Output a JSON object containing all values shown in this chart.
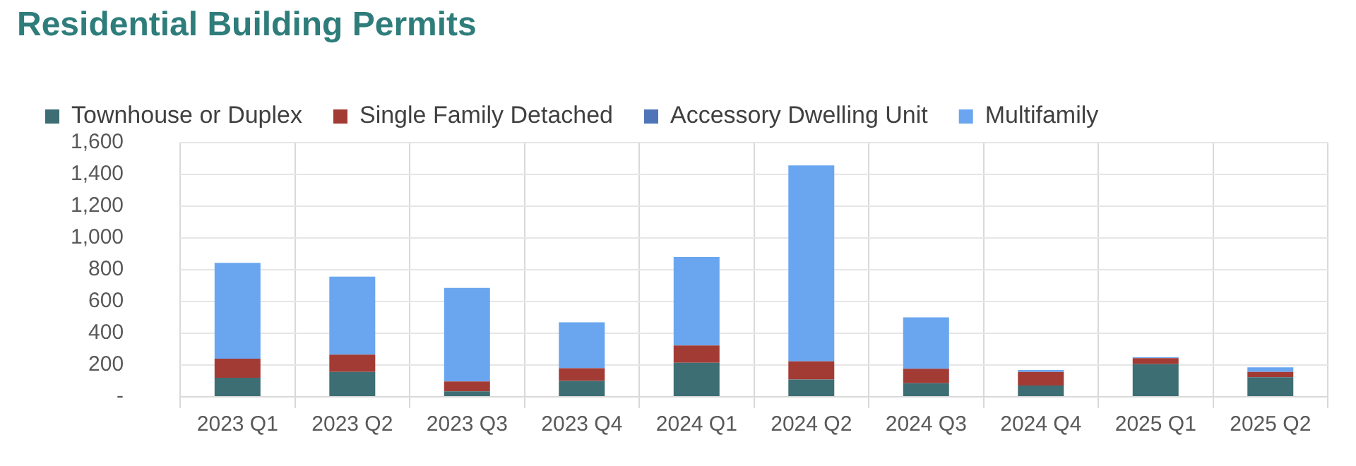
{
  "chart_data": {
    "type": "bar",
    "title": "Residential Building Permits",
    "stacked": true,
    "legend": "top",
    "grid": "y",
    "categories": [
      "2023 Q1",
      "2023 Q2",
      "2023 Q3",
      "2023 Q4",
      "2024 Q1",
      "2024 Q2",
      "2024 Q3",
      "2024 Q4",
      "2025 Q1",
      "2025 Q2"
    ],
    "series": [
      {
        "name": "Townhouse or Duplex",
        "color": "#3d6e74",
        "values": [
          120,
          157,
          34,
          100,
          214,
          109,
          86,
          71,
          206,
          123
        ]
      },
      {
        "name": "Single Family Detached",
        "color": "#a33b35",
        "values": [
          120,
          109,
          63,
          80,
          109,
          114,
          91,
          86,
          37,
          34
        ]
      },
      {
        "name": "Accessory Dwelling Unit",
        "color": "#4f74b8",
        "values": [
          0,
          0,
          0,
          0,
          0,
          0,
          0,
          0,
          0,
          0
        ]
      },
      {
        "name": "Multifamily",
        "color": "#6aa6f0",
        "values": [
          603,
          491,
          589,
          289,
          557,
          1234,
          323,
          12,
          6,
          29
        ]
      }
    ],
    "ylim": [
      0,
      1600
    ],
    "yticks": [
      {
        "value": 0,
        "label": "-"
      },
      200,
      400,
      600,
      800,
      {
        "value": 1000,
        "label": "1,000"
      },
      {
        "value": 1200,
        "label": "1,200"
      },
      {
        "value": 1400,
        "label": "1,400"
      },
      {
        "value": 1600,
        "label": "1,600"
      }
    ]
  }
}
